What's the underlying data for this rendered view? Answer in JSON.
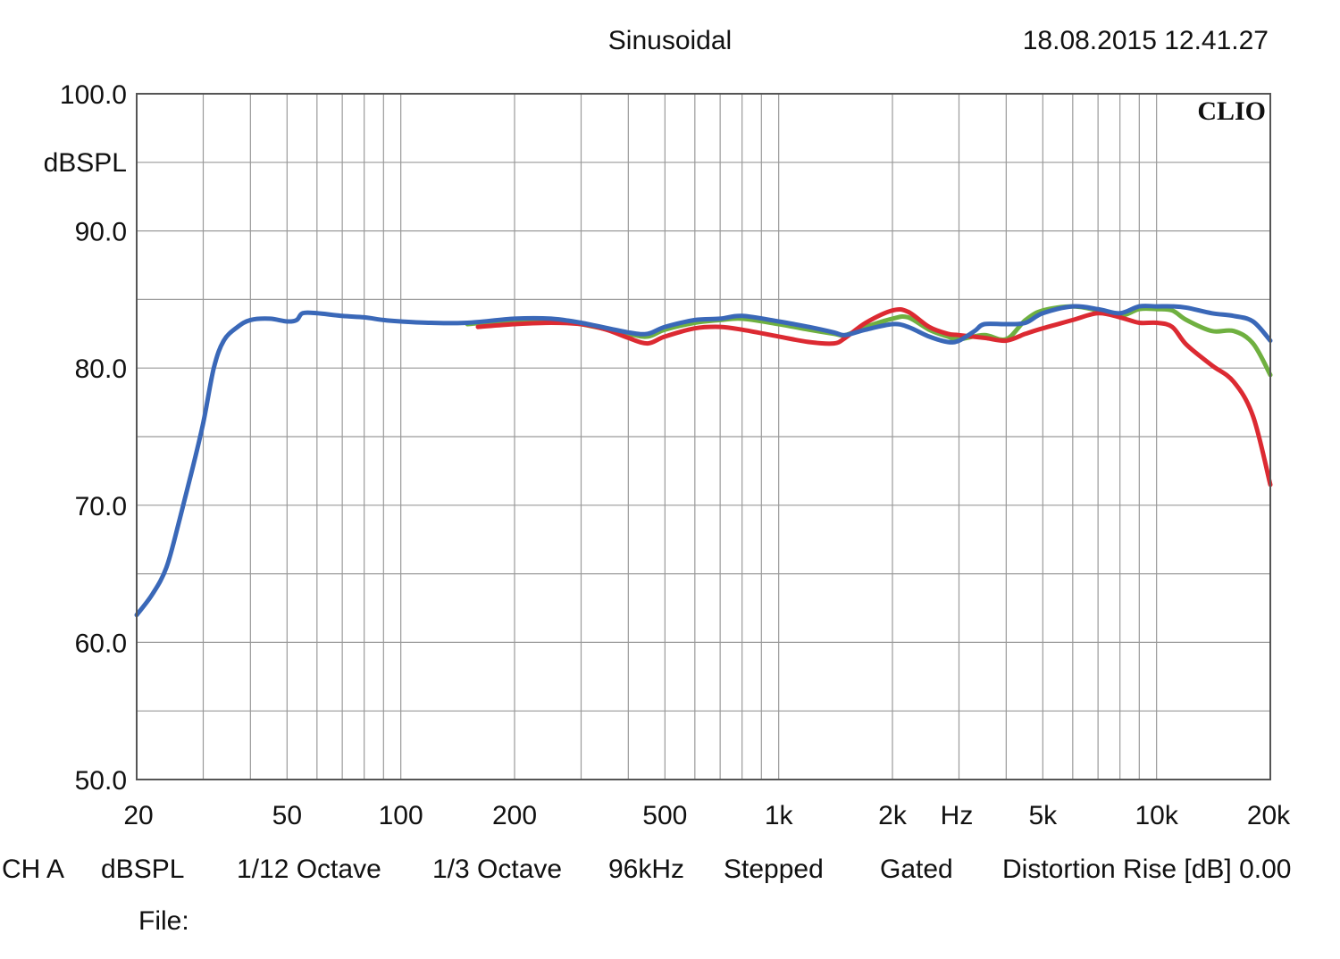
{
  "header": {
    "title": "Sinusoidal",
    "timestamp": "18.08.2015 12.41.27"
  },
  "brand": "CLIO",
  "footer": {
    "channel": "CH A",
    "unit": "dBSPL",
    "resolution": "1/12 Octave",
    "smoothing": "1/3 Octave",
    "sample_rate": "96kHz",
    "mode": "Stepped",
    "window": "Gated",
    "distortion": "Distortion Rise [dB] 0.00",
    "file_label": "File:"
  },
  "chart_data": {
    "type": "line",
    "title": "Sinusoidal",
    "xlabel": "Hz",
    "ylabel": "dBSPL",
    "xscale": "log",
    "xlim": [
      20,
      20000
    ],
    "ylim": [
      50,
      100
    ],
    "grid": true,
    "y_ticks": [
      {
        "value": 100,
        "label": "100.0"
      },
      {
        "value": 90,
        "label": "90.0"
      },
      {
        "value": 80,
        "label": "80.0"
      },
      {
        "value": 70,
        "label": "70.0"
      },
      {
        "value": 60,
        "label": "60.0"
      },
      {
        "value": 50,
        "label": "50.0"
      }
    ],
    "x_ticks": [
      {
        "value": 20,
        "label": "20"
      },
      {
        "value": 50,
        "label": "50"
      },
      {
        "value": 100,
        "label": "100"
      },
      {
        "value": 200,
        "label": "200"
      },
      {
        "value": 500,
        "label": "500"
      },
      {
        "value": 1000,
        "label": "1k"
      },
      {
        "value": 2000,
        "label": "2k"
      },
      {
        "value": 5000,
        "label": "5k"
      },
      {
        "value": 10000,
        "label": "10k"
      },
      {
        "value": 20000,
        "label": "20k"
      }
    ],
    "series": [
      {
        "color": "#3a68b8",
        "points": [
          [
            20,
            62
          ],
          [
            22,
            63.5
          ],
          [
            24,
            65.5
          ],
          [
            26,
            69
          ],
          [
            28,
            72.5
          ],
          [
            30,
            76
          ],
          [
            32,
            80
          ],
          [
            34,
            82
          ],
          [
            37,
            83
          ],
          [
            40,
            83.5
          ],
          [
            45,
            83.6
          ],
          [
            50,
            83.4
          ],
          [
            53,
            83.5
          ],
          [
            55,
            84
          ],
          [
            60,
            84
          ],
          [
            70,
            83.8
          ],
          [
            80,
            83.7
          ],
          [
            90,
            83.5
          ],
          [
            100,
            83.4
          ],
          [
            120,
            83.3
          ],
          [
            150,
            83.3
          ],
          [
            200,
            83.6
          ],
          [
            250,
            83.6
          ],
          [
            300,
            83.3
          ],
          [
            400,
            82.6
          ],
          [
            450,
            82.5
          ],
          [
            500,
            83
          ],
          [
            600,
            83.5
          ],
          [
            700,
            83.6
          ],
          [
            800,
            83.8
          ],
          [
            1000,
            83.4
          ],
          [
            1200,
            83
          ],
          [
            1400,
            82.6
          ],
          [
            1500,
            82.4
          ],
          [
            1700,
            82.8
          ],
          [
            2000,
            83.2
          ],
          [
            2200,
            83
          ],
          [
            2500,
            82.3
          ],
          [
            2800,
            81.9
          ],
          [
            3000,
            82
          ],
          [
            3300,
            82.7
          ],
          [
            3500,
            83.2
          ],
          [
            4000,
            83.2
          ],
          [
            4500,
            83.3
          ],
          [
            5000,
            84
          ],
          [
            6000,
            84.5
          ],
          [
            7000,
            84.3
          ],
          [
            8000,
            84
          ],
          [
            9000,
            84.5
          ],
          [
            10000,
            84.5
          ],
          [
            11000,
            84.5
          ],
          [
            12000,
            84.4
          ],
          [
            14000,
            84
          ],
          [
            16000,
            83.8
          ],
          [
            18000,
            83.4
          ],
          [
            20000,
            82
          ]
        ]
      },
      {
        "color": "#6fb040",
        "points": [
          [
            150,
            83.2
          ],
          [
            200,
            83.5
          ],
          [
            250,
            83.5
          ],
          [
            300,
            83.2
          ],
          [
            400,
            82.5
          ],
          [
            450,
            82.3
          ],
          [
            500,
            82.8
          ],
          [
            600,
            83.3
          ],
          [
            700,
            83.5
          ],
          [
            800,
            83.6
          ],
          [
            1000,
            83.2
          ],
          [
            1200,
            82.8
          ],
          [
            1400,
            82.5
          ],
          [
            1500,
            82.4
          ],
          [
            1700,
            83
          ],
          [
            2000,
            83.6
          ],
          [
            2200,
            83.7
          ],
          [
            2500,
            82.8
          ],
          [
            2800,
            82.3
          ],
          [
            3000,
            82.1
          ],
          [
            3500,
            82.4
          ],
          [
            4000,
            82.1
          ],
          [
            4500,
            83.5
          ],
          [
            5000,
            84.2
          ],
          [
            6000,
            84.5
          ],
          [
            7000,
            84.2
          ],
          [
            8000,
            83.8
          ],
          [
            9000,
            84.3
          ],
          [
            10000,
            84.3
          ],
          [
            11000,
            84.2
          ],
          [
            12000,
            83.5
          ],
          [
            14000,
            82.7
          ],
          [
            16000,
            82.7
          ],
          [
            18000,
            81.8
          ],
          [
            20000,
            79.5
          ]
        ]
      },
      {
        "color": "#dc2a32",
        "points": [
          [
            160,
            83
          ],
          [
            200,
            83.2
          ],
          [
            250,
            83.3
          ],
          [
            300,
            83.2
          ],
          [
            350,
            82.8
          ],
          [
            400,
            82.2
          ],
          [
            450,
            81.8
          ],
          [
            500,
            82.3
          ],
          [
            600,
            82.9
          ],
          [
            700,
            83
          ],
          [
            800,
            82.8
          ],
          [
            1000,
            82.3
          ],
          [
            1200,
            81.9
          ],
          [
            1400,
            81.8
          ],
          [
            1500,
            82.2
          ],
          [
            1700,
            83.3
          ],
          [
            2000,
            84.2
          ],
          [
            2200,
            84.1
          ],
          [
            2500,
            83
          ],
          [
            2800,
            82.5
          ],
          [
            3000,
            82.4
          ],
          [
            3500,
            82.2
          ],
          [
            4000,
            82
          ],
          [
            4500,
            82.5
          ],
          [
            5000,
            82.9
          ],
          [
            6000,
            83.5
          ],
          [
            7000,
            84
          ],
          [
            8000,
            83.7
          ],
          [
            9000,
            83.3
          ],
          [
            10000,
            83.3
          ],
          [
            11000,
            83
          ],
          [
            12000,
            81.7
          ],
          [
            14000,
            80.2
          ],
          [
            16000,
            79
          ],
          [
            18000,
            76.5
          ],
          [
            20000,
            71.5
          ]
        ]
      }
    ]
  }
}
